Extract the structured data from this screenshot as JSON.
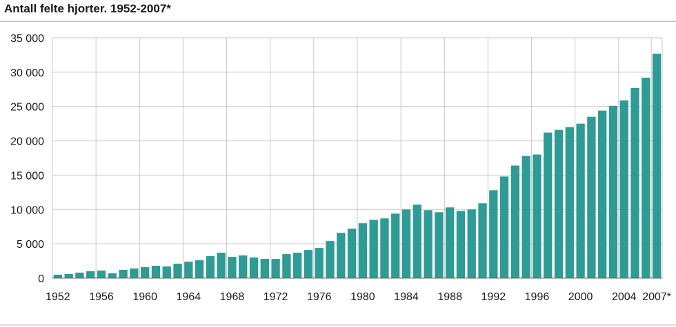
{
  "chart_data": {
    "type": "bar",
    "title": "Antall felte hjorter. 1952-2007*",
    "xlabel": "",
    "ylabel": "",
    "ylim": [
      0,
      35000
    ],
    "grid": true,
    "bar_color": "#2e9b94",
    "y_ticks": [
      {
        "value": 0,
        "label": "0"
      },
      {
        "value": 5000,
        "label": "5 000"
      },
      {
        "value": 10000,
        "label": "10 000"
      },
      {
        "value": 15000,
        "label": "15 000"
      },
      {
        "value": 20000,
        "label": "20 000"
      },
      {
        "value": 25000,
        "label": "25 000"
      },
      {
        "value": 30000,
        "label": "30 000"
      },
      {
        "value": 35000,
        "label": "35 000"
      }
    ],
    "x_ticks": [
      {
        "year": 1952,
        "label": "1952"
      },
      {
        "year": 1956,
        "label": "1956"
      },
      {
        "year": 1960,
        "label": "1960"
      },
      {
        "year": 1964,
        "label": "1964"
      },
      {
        "year": 1968,
        "label": "1968"
      },
      {
        "year": 1972,
        "label": "1972"
      },
      {
        "year": 1976,
        "label": "1976"
      },
      {
        "year": 1980,
        "label": "1980"
      },
      {
        "year": 1984,
        "label": "1984"
      },
      {
        "year": 1988,
        "label": "1988"
      },
      {
        "year": 1992,
        "label": "1992"
      },
      {
        "year": 1996,
        "label": "1996"
      },
      {
        "year": 2000,
        "label": "2000"
      },
      {
        "year": 2004,
        "label": "2004"
      },
      {
        "year": 2007,
        "label": "2007*"
      }
    ],
    "categories": [
      1952,
      1953,
      1954,
      1955,
      1956,
      1957,
      1958,
      1959,
      1960,
      1961,
      1962,
      1963,
      1964,
      1965,
      1966,
      1967,
      1968,
      1969,
      1970,
      1971,
      1972,
      1973,
      1974,
      1975,
      1976,
      1977,
      1978,
      1979,
      1980,
      1981,
      1982,
      1983,
      1984,
      1985,
      1986,
      1987,
      1988,
      1989,
      1990,
      1991,
      1992,
      1993,
      1994,
      1995,
      1996,
      1997,
      1998,
      1999,
      2000,
      2001,
      2002,
      2003,
      2004,
      2005,
      2006,
      2007
    ],
    "values": [
      500,
      600,
      800,
      1000,
      1100,
      700,
      1200,
      1400,
      1600,
      1800,
      1700,
      2100,
      2400,
      2600,
      3200,
      3700,
      3100,
      3300,
      3000,
      2800,
      2800,
      3500,
      3700,
      4100,
      4400,
      5400,
      6600,
      7200,
      8000,
      8500,
      8700,
      9400,
      10000,
      10700,
      9900,
      9600,
      10300,
      9800,
      10000,
      10900,
      12800,
      14800,
      16400,
      17800,
      18000,
      21200,
      21600,
      22000,
      22500,
      23500,
      24400,
      25100,
      25900,
      27700,
      29200,
      32700
    ]
  }
}
